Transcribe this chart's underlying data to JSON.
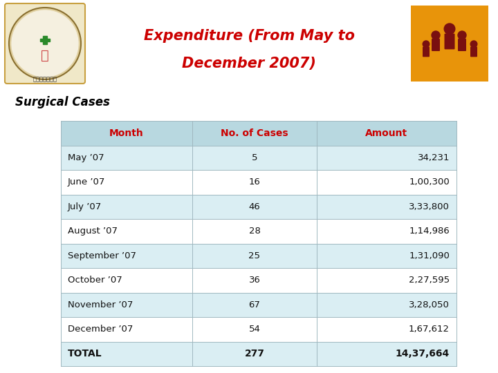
{
  "title_line1": "Expenditure (From May to",
  "title_line2": "December 2007)",
  "title_color": "#cc0000",
  "subtitle": "Surgical Cases",
  "subtitle_color": "#000000",
  "bg_color": "#ffffff",
  "header_bg": "#b8d8e0",
  "header_text_color": "#cc0000",
  "row_bg_light": "#daeef3",
  "row_bg_white": "#ffffff",
  "total_row_bg": "#daeef3",
  "col_headers": [
    "Month",
    "No. of Cases",
    "Amount"
  ],
  "rows": [
    [
      "May ’07",
      "5",
      "34,231"
    ],
    [
      "June ’07",
      "16",
      "1,00,300"
    ],
    [
      "July ’07",
      "46",
      "3,33,800"
    ],
    [
      "August ’07",
      "28",
      "1,14,986"
    ],
    [
      "September ’07",
      "25",
      "1,31,090"
    ],
    [
      "October ’07",
      "36",
      "2,27,595"
    ],
    [
      "November ’07",
      "67",
      "3,28,050"
    ],
    [
      "December ’07",
      "54",
      "1,67,612"
    ]
  ],
  "total_row": [
    "TOTAL",
    "277",
    "14,37,664"
  ],
  "header_font_size": 10,
  "row_font_size": 9.5,
  "total_font_size": 10,
  "title_font_size": 15,
  "subtitle_font_size": 12,
  "logo_left_color": "#e8d8a0",
  "logo_right_color": "#e8940a",
  "line_color": "#a0b8c0"
}
